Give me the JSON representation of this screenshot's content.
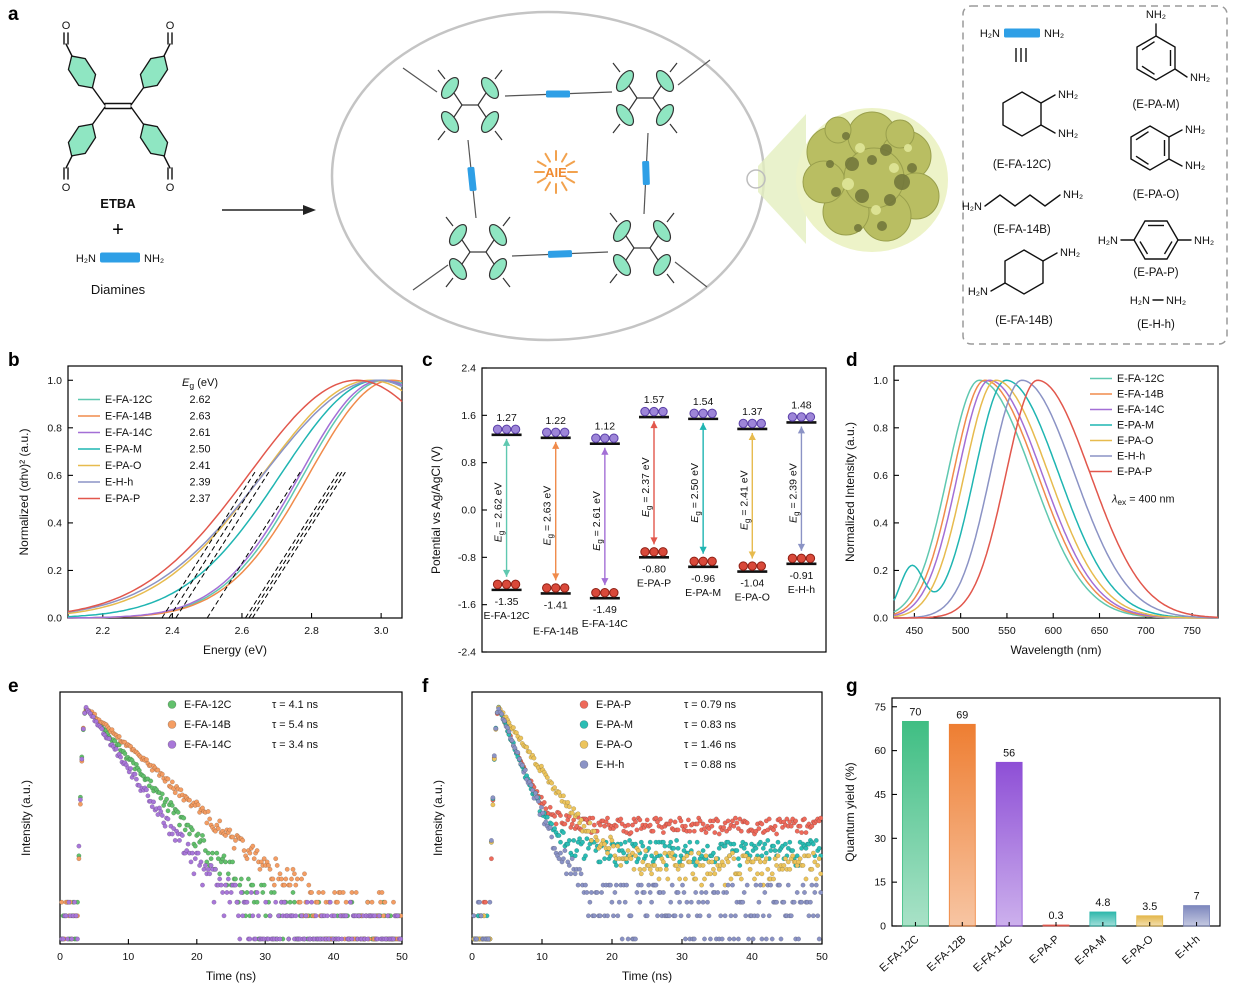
{
  "letters": {
    "a": "a",
    "b": "b",
    "c": "c",
    "d": "d",
    "e": "e",
    "f": "f",
    "g": "g"
  },
  "panel_a": {
    "etba": "ETBA",
    "plus": "+",
    "diamines": "Diamines",
    "aie": "AIE",
    "h2n": "H₂N",
    "nh2": "NH₂",
    "oxygen": "O",
    "names": {
      "fa12c": "(E-FA-12C)",
      "fa14b_chain": "(E-FA-14B)",
      "fa14b_ring": "(E-FA-14B)",
      "pam": "(E-PA-M)",
      "pao": "(E-PA-O)",
      "pap": "(E-PA-P)",
      "ehh": "(E-H-h)"
    }
  },
  "chart_data": [
    {
      "panel": "b",
      "type": "line",
      "xlabel": "Energy (eV)",
      "ylabel": "Normalized (αhν)² (a.u.)",
      "xlim": [
        2.1,
        3.06
      ],
      "ylim": [
        0,
        1.06
      ],
      "xticks": [
        2.2,
        2.4,
        2.6,
        2.8,
        3.0
      ],
      "yticks": [
        0,
        0.2,
        0.4,
        0.6,
        0.8,
        1.0
      ],
      "legend_title": "Eg (eV)",
      "series": [
        {
          "name": "E-FA-12C",
          "Eg": 2.62,
          "peak": 3.01,
          "color": "#5fc8b0"
        },
        {
          "name": "E-FA-14B",
          "Eg": 2.63,
          "peak": 3.03,
          "color": "#f08b4b"
        },
        {
          "name": "E-FA-14C",
          "Eg": 2.61,
          "peak": 3.0,
          "color": "#a36fd6"
        },
        {
          "name": "E-PA-M",
          "Eg": 2.5,
          "peak": 2.99,
          "color": "#1fb5b2"
        },
        {
          "name": "E-PA-O",
          "Eg": 2.41,
          "peak": 2.97,
          "color": "#e7bb4e"
        },
        {
          "name": "E-H-h",
          "Eg": 2.39,
          "peak": 2.99,
          "color": "#8b93c5"
        },
        {
          "name": "E-PA-P",
          "Eg": 2.37,
          "peak": 2.93,
          "color": "#e2574c"
        }
      ]
    },
    {
      "panel": "c",
      "type": "line",
      "ylabel": "Potential vs Ag/AgCl (V)",
      "ylim": [
        -2.4,
        2.4
      ],
      "yticks": [
        2.4,
        1.6,
        0.8,
        0.0,
        -0.8,
        -1.6,
        -2.4
      ],
      "levels": [
        {
          "name": "E-FA-12C",
          "top": 1.27,
          "bottom": -1.35,
          "eg_label": "Eg = 2.62 eV",
          "color": "#5fc8b0"
        },
        {
          "name": "E-FA-14B",
          "top": 1.22,
          "bottom": -1.41,
          "eg_label": "Eg = 2.63 eV",
          "color": "#f08b4b"
        },
        {
          "name": "E-FA-14C",
          "top": 1.12,
          "bottom": -1.49,
          "eg_label": "Eg = 2.61 eV",
          "color": "#a36fd6"
        },
        {
          "name": "E-PA-P",
          "top": 1.57,
          "bottom": -0.8,
          "eg_label": "Eg = 2.37 eV",
          "color": "#e2574c"
        },
        {
          "name": "E-PA-M",
          "top": 1.54,
          "bottom": -0.96,
          "eg_label": "Eg = 2.50 eV",
          "color": "#1fb5b2"
        },
        {
          "name": "E-PA-O",
          "top": 1.37,
          "bottom": -1.04,
          "eg_label": "Eg = 2.41 eV",
          "color": "#e7bb4e"
        },
        {
          "name": "E-H-h",
          "top": 1.48,
          "bottom": -0.91,
          "eg_label": "Eg = 2.39 eV",
          "color": "#8b93c5"
        }
      ]
    },
    {
      "panel": "d",
      "type": "line",
      "xlabel": "Wavelength (nm)",
      "ylabel": "Normalized Intensity (a.u.)",
      "xlim": [
        428,
        778
      ],
      "ylim": [
        0,
        1.06
      ],
      "xticks": [
        450,
        500,
        550,
        600,
        650,
        700,
        750
      ],
      "yticks": [
        0,
        0.2,
        0.4,
        0.6,
        0.8,
        1.0
      ],
      "annotation": "λex = 400 nm",
      "series": [
        {
          "name": "E-FA-12C",
          "peak": 520,
          "color": "#5fc8b0"
        },
        {
          "name": "E-FA-14B",
          "peak": 526,
          "color": "#f08b4b"
        },
        {
          "name": "E-FA-14C",
          "peak": 531,
          "color": "#a36fd6"
        },
        {
          "name": "E-PA-M",
          "peak": 549,
          "color": "#1fb5b2",
          "bump_x": 447,
          "bump_h": 0.21
        },
        {
          "name": "E-PA-O",
          "peak": 538,
          "color": "#e7bb4e"
        },
        {
          "name": "E-H-h",
          "peak": 566,
          "color": "#8b93c5"
        },
        {
          "name": "E-PA-P",
          "peak": 583,
          "color": "#e2574c"
        }
      ]
    },
    {
      "panel": "e",
      "type": "scatter",
      "xlabel": "Time (ns)",
      "ylabel": "Intensity (a.u.)",
      "xlim": [
        0,
        50
      ],
      "xticks": [
        0,
        10,
        20,
        30,
        40,
        50
      ],
      "series": [
        {
          "name": "E-FA-12C",
          "tau_label": "τ = 4.1 ns",
          "tau": 4.1,
          "baseline": 1.3,
          "color": "#62c06c"
        },
        {
          "name": "E-FA-14B",
          "tau_label": "τ = 5.4 ns",
          "tau": 5.4,
          "baseline": 1.5,
          "color": "#f49d63"
        },
        {
          "name": "E-FA-14C",
          "tau_label": "τ = 3.4 ns",
          "tau": 3.4,
          "baseline": 1.3,
          "color": "#a877d8"
        }
      ]
    },
    {
      "panel": "f",
      "type": "scatter",
      "xlabel": "Time (ns)",
      "ylabel": "Intensity (a.u.)",
      "xlim": [
        0,
        50
      ],
      "xticks": [
        0,
        10,
        20,
        30,
        40,
        50
      ],
      "series": [
        {
          "name": "E-PA-P",
          "tau_label": "τ = 0.79 ns",
          "tau": 0.79,
          "baseline": 30,
          "color": "#ee6a5b"
        },
        {
          "name": "E-PA-M",
          "tau_label": "τ = 0.83 ns",
          "tau": 0.83,
          "baseline": 14,
          "color": "#2bbdb4"
        },
        {
          "name": "E-PA-O",
          "tau_label": "τ = 1.46 ns",
          "tau": 1.46,
          "baseline": 9,
          "color": "#ecc45c"
        },
        {
          "name": "E-H-h",
          "tau_label": "τ = 0.88 ns",
          "tau": 0.88,
          "baseline": 3,
          "color": "#8b93c5"
        }
      ]
    },
    {
      "panel": "g",
      "type": "bar",
      "ylabel": "Quantum yield (%)",
      "ylim": [
        0,
        78
      ],
      "yticks": [
        0,
        15,
        30,
        45,
        60,
        75
      ],
      "categories": [
        "E-FA-12C",
        "E-FA-12B",
        "E-FA-14C",
        "E-PA-P",
        "E-PA-M",
        "E-PA-O",
        "E-H-h"
      ],
      "values": [
        70,
        69,
        56,
        0.3,
        4.8,
        3.5,
        7
      ],
      "value_labels": [
        "70",
        "69",
        "56",
        "0.3",
        "4.8",
        "3.5",
        "7"
      ],
      "colors": [
        "#3fbe83",
        "#ee7e32",
        "#8e4fd6",
        "#e2574c",
        "#2fb8ac",
        "#e4b84c",
        "#7d87bd"
      ]
    }
  ]
}
